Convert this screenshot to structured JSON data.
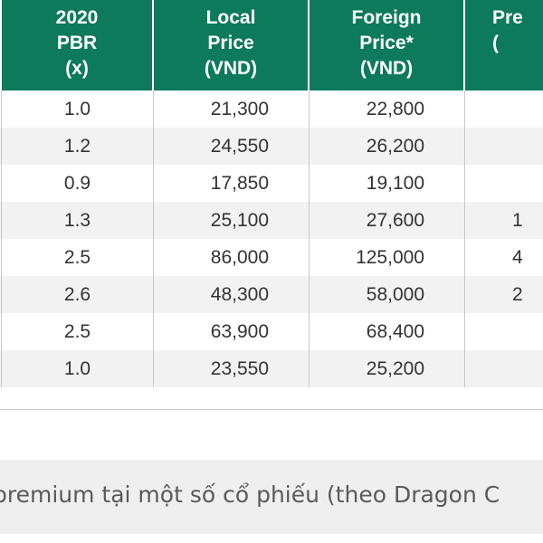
{
  "table": {
    "headers": [
      {
        "key": "pbr",
        "lines": [
          "2020",
          "PBR",
          "(x)"
        ]
      },
      {
        "key": "local",
        "lines": [
          "Local",
          "Price",
          "(VND)"
        ]
      },
      {
        "key": "foreign",
        "lines": [
          "Foreign",
          "Price*",
          "(VND)"
        ]
      },
      {
        "key": "premium",
        "lines": [
          "Pre",
          "("
        ]
      }
    ],
    "rows": [
      {
        "pbr": "1.0",
        "local": "21,300",
        "foreign": "22,800",
        "premium": ""
      },
      {
        "pbr": "1.2",
        "local": "24,550",
        "foreign": "26,200",
        "premium": ""
      },
      {
        "pbr": "0.9",
        "local": "17,850",
        "foreign": "19,100",
        "premium": ""
      },
      {
        "pbr": "1.3",
        "local": "25,100",
        "foreign": "27,600",
        "premium": "1"
      },
      {
        "pbr": "2.5",
        "local": "86,000",
        "foreign": "125,000",
        "premium": "4"
      },
      {
        "pbr": "2.6",
        "local": "48,300",
        "foreign": "58,000",
        "premium": "2"
      },
      {
        "pbr": "2.5",
        "local": "63,900",
        "foreign": "68,400",
        "premium": ""
      },
      {
        "pbr": "1.0",
        "local": "23,550",
        "foreign": "25,200",
        "premium": ""
      }
    ]
  },
  "caption": "premium tại một số cổ phiếu (theo Dragon C"
}
